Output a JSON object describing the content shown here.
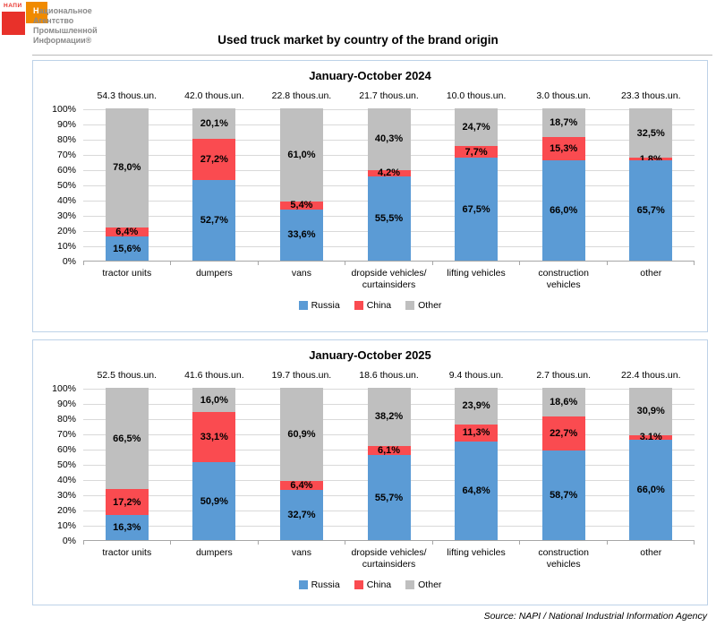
{
  "logo": {
    "mark": "НАПИ",
    "lines": [
      "Национальное",
      "Агентство",
      "Промышленной",
      "Информации®"
    ],
    "red": "#e8312a",
    "orange": "#f08a00",
    "text_color": "#8a8a8a"
  },
  "title": "Used truck market by country of the brand origin",
  "source": "Source: NAPI / National Industrial Information Agency",
  "legend": [
    {
      "label": "Russia",
      "color": "#5b9bd5"
    },
    {
      "label": "China",
      "color": "#fa4b50"
    },
    {
      "label": "Other",
      "color": "#bfbfbf"
    }
  ],
  "y_ticks": [
    "100%",
    "90%",
    "80%",
    "70%",
    "60%",
    "50%",
    "40%",
    "30%",
    "20%",
    "10%",
    "0%"
  ],
  "chart_data": [
    {
      "type": "bar",
      "stacked": true,
      "title": "January-October 2024",
      "ylabel": "",
      "ylim": [
        0,
        100
      ],
      "grid": true,
      "legend_position": "bottom",
      "totals_unit": "thous.un.",
      "totals": [
        54.3,
        42.0,
        22.8,
        21.7,
        10.0,
        3.0,
        23.3
      ],
      "categories": [
        [
          "tractor units"
        ],
        [
          "dumpers"
        ],
        [
          "vans"
        ],
        [
          "dropside vehicles/",
          "curtainsiders"
        ],
        [
          "lifting vehicles"
        ],
        [
          "construction",
          "vehicles"
        ],
        [
          "other"
        ]
      ],
      "series": [
        {
          "name": "Russia",
          "values": [
            15.6,
            52.7,
            33.6,
            55.5,
            67.5,
            66.0,
            65.7
          ]
        },
        {
          "name": "China",
          "values": [
            6.4,
            27.2,
            5.4,
            4.2,
            7.7,
            15.3,
            1.8
          ]
        },
        {
          "name": "Other",
          "values": [
            78.0,
            20.1,
            61.0,
            40.3,
            24.7,
            18.7,
            32.5
          ]
        }
      ]
    },
    {
      "type": "bar",
      "stacked": true,
      "title": "January-October 2025",
      "ylabel": "",
      "ylim": [
        0,
        100
      ],
      "grid": true,
      "legend_position": "bottom",
      "totals_unit": "thous.un.",
      "totals": [
        52.5,
        41.6,
        19.7,
        18.6,
        9.4,
        2.7,
        22.4
      ],
      "categories": [
        [
          "tractor units"
        ],
        [
          "dumpers"
        ],
        [
          "vans"
        ],
        [
          "dropside vehicles/",
          "curtainsiders"
        ],
        [
          "lifting vehicles"
        ],
        [
          "construction",
          "vehicles"
        ],
        [
          "other"
        ]
      ],
      "series": [
        {
          "name": "Russia",
          "values": [
            16.3,
            50.9,
            32.7,
            55.7,
            64.8,
            58.7,
            66.0
          ]
        },
        {
          "name": "China",
          "values": [
            17.2,
            33.1,
            6.4,
            6.1,
            11.3,
            22.7,
            3.1
          ]
        },
        {
          "name": "Other",
          "values": [
            66.5,
            16.0,
            60.9,
            38.2,
            23.9,
            18.6,
            30.9
          ]
        }
      ]
    }
  ]
}
